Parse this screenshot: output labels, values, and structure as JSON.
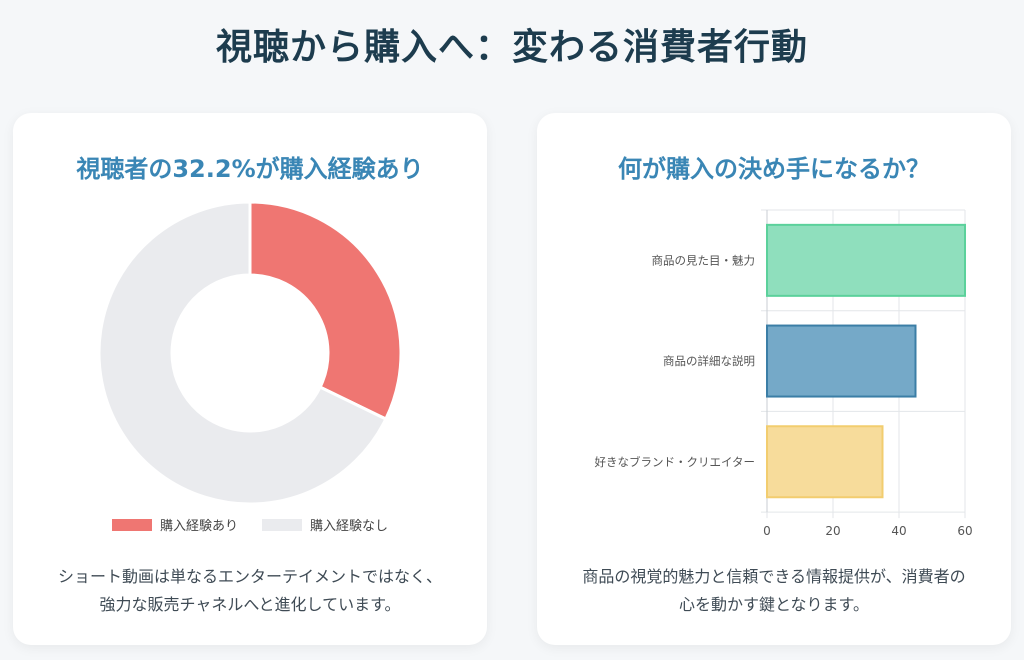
{
  "page": {
    "title": "視聴から購入へ：変わる消費者行動"
  },
  "left_card": {
    "title": "視聴者の32.2%が購入経験あり",
    "description": "ショート動画は単なるエンターテイメントではなく、強力な販売チャネルへと進化しています。"
  },
  "right_card": {
    "title": "何が購入の決め手になるか？",
    "description": "商品の視覚的魅力と信頼できる情報提供が、消費者の心を動かす鍵となります。"
  },
  "chart_data": [
    {
      "type": "pie",
      "variant": "doughnut",
      "title": "",
      "slices": [
        {
          "label": "購入経験あり",
          "value": 32.2,
          "color": "#ef7672"
        },
        {
          "label": "購入経験なし",
          "value": 67.8,
          "color": "#eaebee"
        }
      ],
      "legend_position": "bottom"
    },
    {
      "type": "bar",
      "orientation": "horizontal",
      "title": "",
      "categories": [
        "商品の見た目・魅力",
        "商品の詳細な説明",
        "好きなブランド・クリエイター"
      ],
      "values": [
        60,
        45,
        35
      ],
      "colors": [
        "#8fdfbd",
        "#75a9c8",
        "#f7dc9b"
      ],
      "border_colors": [
        "#5bd19b",
        "#3b7ea6",
        "#f2cd6f"
      ],
      "xlim": [
        0,
        60
      ],
      "x_ticks": [
        0,
        20,
        40,
        60
      ],
      "grid": true
    }
  ]
}
